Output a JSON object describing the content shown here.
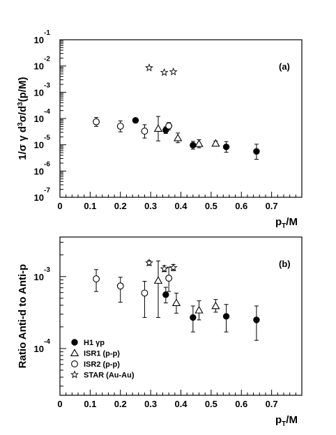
{
  "chart_data": [
    {
      "type": "scatter",
      "panel_label": "(a)",
      "ylabel": "1/σ γ d³σ/d³(p/M)",
      "xlabel": "p_T/M",
      "xlim": [
        0,
        0.8
      ],
      "ylim_log10": [
        -7,
        -1
      ],
      "y_scale": "log",
      "x_ticks": [
        "0",
        "0.1",
        "0.2",
        "0.3",
        "0.4",
        "0.5",
        "0.6",
        "0.7"
      ],
      "y_ticks": [
        {
          "base": "10",
          "exp": "-1"
        },
        {
          "base": "10",
          "exp": "-2"
        },
        {
          "base": "10",
          "exp": "-3"
        },
        {
          "base": "10",
          "exp": "-4"
        },
        {
          "base": "10",
          "exp": "-5"
        },
        {
          "base": "10",
          "exp": "-6"
        },
        {
          "base": "10",
          "exp": "-7"
        }
      ],
      "series": [
        {
          "marker": "filled-circle",
          "points": [
            {
              "x": 0.25,
              "y": 8.5e-05,
              "lo": 7e-05,
              "hi": 0.000102
            },
            {
              "x": 0.35,
              "y": 3.6e-05,
              "lo": 2.7e-05,
              "hi": 4.8e-05
            },
            {
              "x": 0.44,
              "y": 9.6e-06,
              "lo": 6.8e-06,
              "hi": 1.35e-05
            },
            {
              "x": 0.55,
              "y": 8.3e-06,
              "lo": 5.2e-06,
              "hi": 1.32e-05
            },
            {
              "x": 0.65,
              "y": 5.6e-06,
              "lo": 2.8e-06,
              "hi": 1.05e-05
            }
          ]
        },
        {
          "marker": "open-triangle",
          "points": [
            {
              "x": 0.325,
              "y": 4.1e-05,
              "lo": 1.4e-05,
              "hi": 0.00012
            },
            {
              "x": 0.39,
              "y": 1.8e-05,
              "lo": 1.2e-05,
              "hi": 2.8e-05
            },
            {
              "x": 0.46,
              "y": 1.09e-05,
              "lo": 7.7e-06,
              "hi": 1.55e-05
            },
            {
              "x": 0.515,
              "y": 1.12e-05,
              "lo": 9.1e-06,
              "hi": 1.38e-05
            }
          ]
        },
        {
          "marker": "open-circle",
          "points": [
            {
              "x": 0.12,
              "y": 7.5e-05,
              "lo": 5e-05,
              "hi": 0.00011
            },
            {
              "x": 0.2,
              "y": 5.1e-05,
              "lo": 3.1e-05,
              "hi": 8.1e-05
            },
            {
              "x": 0.28,
              "y": 3.3e-05,
              "lo": 1.8e-05,
              "hi": 5.8e-05
            },
            {
              "x": 0.36,
              "y": 5.2e-05,
              "lo": 3.7e-05,
              "hi": 7e-05
            }
          ]
        },
        {
          "marker": "open-star",
          "points": [
            {
              "x": 0.295,
              "y": 0.0085
            },
            {
              "x": 0.345,
              "y": 0.0057
            },
            {
              "x": 0.375,
              "y": 0.006
            }
          ]
        }
      ]
    },
    {
      "type": "scatter",
      "panel_label": "(b)",
      "ylabel": "Ratio Anti-d to Anti-p",
      "xlabel": "p_T/M",
      "xlim": [
        0,
        0.8
      ],
      "ylim_log10": [
        -4.65,
        -2.45
      ],
      "y_scale": "log",
      "x_ticks": [
        "0",
        "0.1",
        "0.2",
        "0.3",
        "0.4",
        "0.5",
        "0.6",
        "0.7"
      ],
      "y_ticks": [
        {
          "base": "10",
          "exp": "-3"
        },
        {
          "base": "10",
          "exp": "-4"
        }
      ],
      "legend_position": "bottom-left",
      "legend": [
        {
          "marker": "filled-circle",
          "label": "H1 γp"
        },
        {
          "marker": "open-triangle",
          "label": "ISR1 (p-p)"
        },
        {
          "marker": "open-circle",
          "label": "ISR2 (p-p)"
        },
        {
          "marker": "open-star",
          "label": "STAR (Au-Au)"
        }
      ],
      "series": [
        {
          "name": "H1 γp",
          "marker": "filled-circle",
          "points": [
            {
              "x": 0.35,
              "y": 0.00056,
              "lo": 0.00043,
              "hi": 0.00071
            },
            {
              "x": 0.44,
              "y": 0.00027,
              "lo": 0.00017,
              "hi": 0.00039
            },
            {
              "x": 0.55,
              "y": 0.00028,
              "lo": 0.00017,
              "hi": 0.00041
            },
            {
              "x": 0.65,
              "y": 0.00025,
              "lo": 0.00013,
              "hi": 0.00039
            }
          ]
        },
        {
          "name": "ISR1 (p-p)",
          "marker": "open-triangle",
          "points": [
            {
              "x": 0.325,
              "y": 0.00088,
              "lo": 0.00027,
              "hi": 0.00165
            },
            {
              "x": 0.385,
              "y": 0.00043,
              "lo": 0.00031,
              "hi": 0.00059
            },
            {
              "x": 0.46,
              "y": 0.00034,
              "lo": 0.00025,
              "hi": 0.00046
            },
            {
              "x": 0.515,
              "y": 0.00039,
              "lo": 0.00032,
              "hi": 0.00048
            }
          ]
        },
        {
          "name": "ISR2 (p-p)",
          "marker": "open-circle",
          "points": [
            {
              "x": 0.12,
              "y": 0.00093,
              "lo": 0.00062,
              "hi": 0.00125
            },
            {
              "x": 0.2,
              "y": 0.00074,
              "lo": 0.00044,
              "hi": 0.00098
            },
            {
              "x": 0.28,
              "y": 0.00059,
              "lo": 0.00027,
              "hi": 0.00086
            },
            {
              "x": 0.36,
              "y": 0.00095,
              "lo": 0.00062,
              "hi": 0.00135
            }
          ]
        },
        {
          "name": "STAR (Au-Au)",
          "marker": "open-star",
          "points": [
            {
              "x": 0.295,
              "y": 0.00155,
              "lo": 0.00144,
              "hi": 0.00167
            },
            {
              "x": 0.345,
              "y": 0.00128,
              "lo": 0.00117,
              "hi": 0.00142
            },
            {
              "x": 0.375,
              "y": 0.00133,
              "lo": 0.00121,
              "hi": 0.00147
            }
          ]
        }
      ]
    }
  ]
}
